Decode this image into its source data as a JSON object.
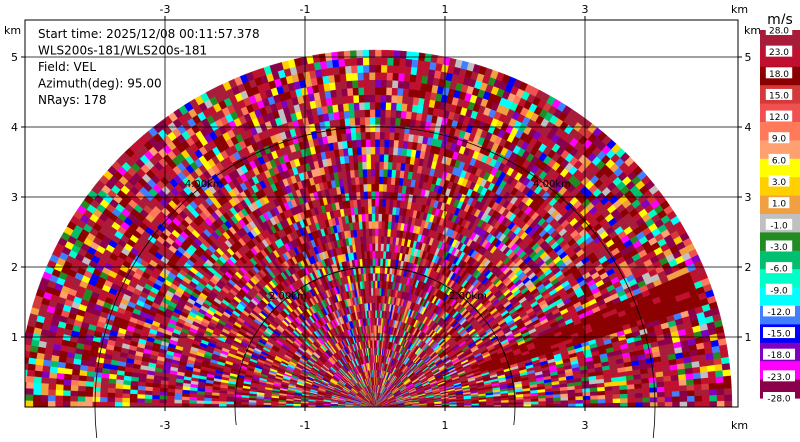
{
  "chart_data": {
    "type": "heatmap",
    "subtype": "ppi",
    "info_lines": [
      "Start time: 2025/12/08 00:11:57.378",
      "WLS200s-181/WLS200s-181",
      "Field: VEL",
      "Azimuth(deg): 95.00",
      "NRays: 178"
    ],
    "x_unit": "km",
    "y_unit": "km",
    "x_ticks": [
      -3,
      -1,
      1,
      3
    ],
    "y_ticks": [
      1,
      2,
      3,
      4,
      5
    ],
    "xlim": [
      -5.2,
      5.0
    ],
    "ylim": [
      -0.05,
      5.95
    ],
    "grid": true,
    "range_max_km": 5.1,
    "range_rings": [
      {
        "r_km": 2.0,
        "label": "2.00km"
      },
      {
        "r_km": 4.0,
        "label": "4.00km"
      }
    ],
    "colorbar": {
      "unit": "m/s",
      "ticks": [
        "28.0",
        "23.0",
        "18.0",
        "15.0",
        "12.0",
        "9.0",
        "6.0",
        "3.0",
        "1.0",
        "-1.0",
        "-3.0",
        "-6.0",
        "-9.0",
        "-12.0",
        "-15.0",
        "-18.0",
        "-23.0",
        "-28.0"
      ],
      "colors": [
        "#a81c3a",
        "#c01030",
        "#8b0000",
        "#d43a3a",
        "#f05050",
        "#ff7a5a",
        "#ffa070",
        "#ffff00",
        "#ffd000",
        "#f0a040",
        "#c0c0c0",
        "#228b22",
        "#00c070",
        "#00ffc8",
        "#00ffff",
        "#4080ff",
        "#0000ff",
        "#8000c0",
        "#ff00ff",
        "#8b004b"
      ]
    }
  }
}
